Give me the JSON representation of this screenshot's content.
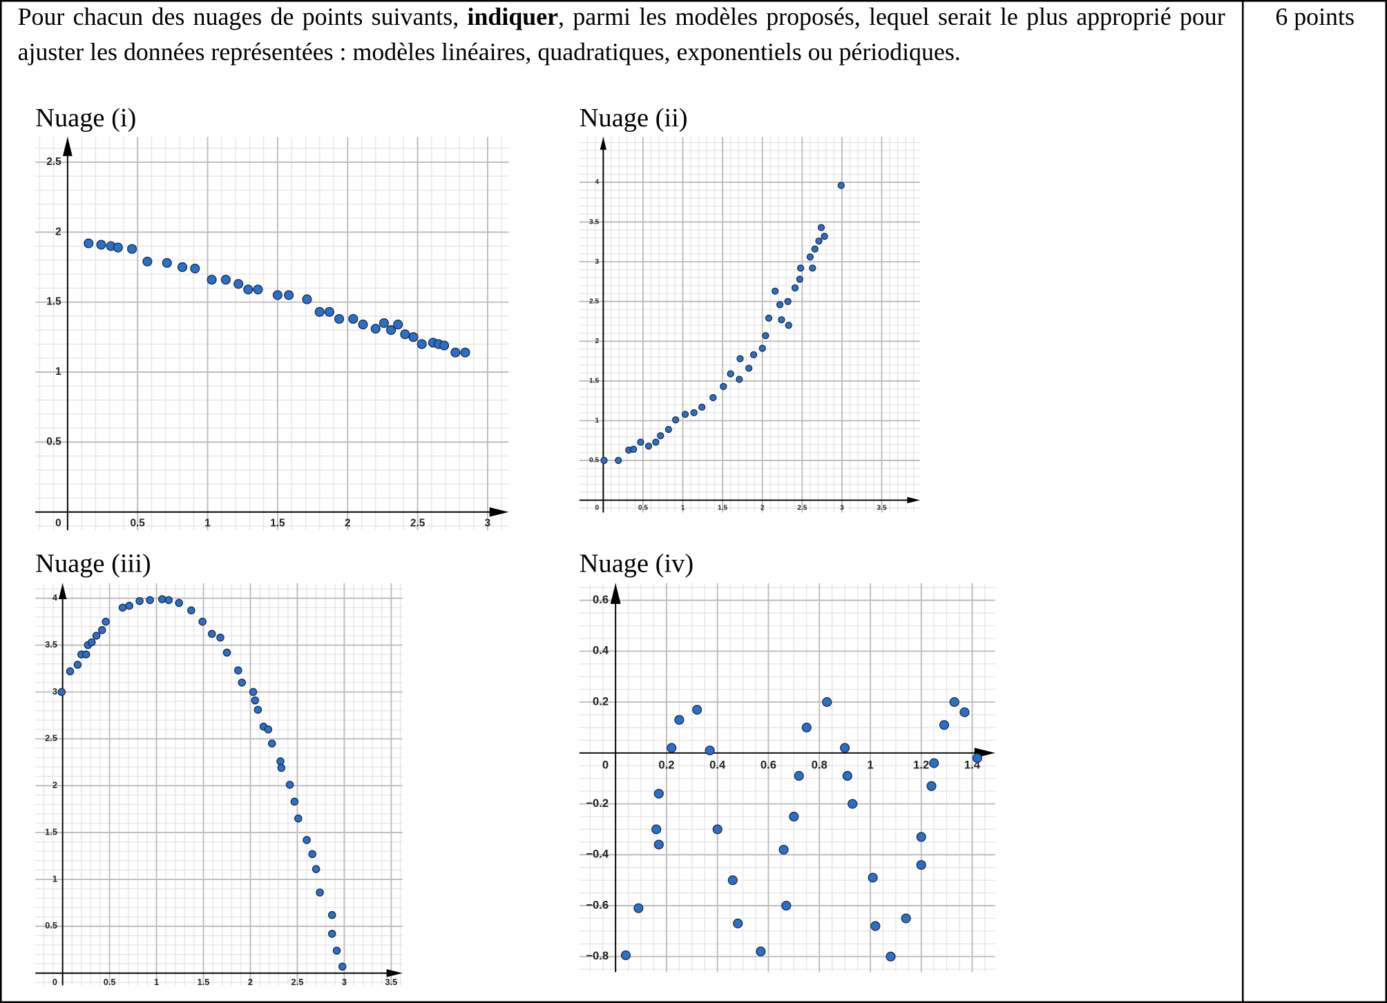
{
  "exercise": {
    "intro": "Pour chacun des nuages de points suivants, ",
    "bold": "indiquer",
    "rest": ", parmi les modèles proposés, lequel serait le plus approprié pour ajuster les données représentées : modèles linéaires, quadratiques, exponentiels ou périodiques.",
    "points": "6 points"
  },
  "chart_data": [
    {
      "type": "scatter",
      "title": "Nuage (i)",
      "color": "#2a6fc9",
      "grid": true,
      "x": [
        0.15,
        0.24,
        0.31,
        0.36,
        0.46,
        0.57,
        0.71,
        0.82,
        0.91,
        1.03,
        1.13,
        1.22,
        1.29,
        1.36,
        1.5,
        1.58,
        1.71,
        1.8,
        1.87,
        1.94,
        2.04,
        2.11,
        2.2,
        2.26,
        2.31,
        2.36,
        2.41,
        2.47,
        2.53,
        2.61,
        2.65,
        2.69,
        2.77,
        2.84
      ],
      "values": [
        1.92,
        1.91,
        1.9,
        1.89,
        1.88,
        1.79,
        1.78,
        1.75,
        1.74,
        1.66,
        1.66,
        1.63,
        1.59,
        1.59,
        1.55,
        1.55,
        1.52,
        1.43,
        1.43,
        1.38,
        1.38,
        1.34,
        1.31,
        1.35,
        1.3,
        1.34,
        1.27,
        1.25,
        1.2,
        1.21,
        1.2,
        1.19,
        1.14,
        1.14
      ],
      "xlim": [
        -0.23,
        3.15
      ],
      "ylim": [
        -0.13,
        2.68
      ],
      "xticks": [
        0,
        0.5,
        1,
        1.5,
        2,
        2.5,
        3
      ],
      "yticks": [
        0.5,
        1,
        1.5,
        2,
        2.5
      ]
    },
    {
      "type": "scatter",
      "title": "Nuage (ii)",
      "color": "#2a6fc9",
      "grid": true,
      "x": [
        0.01,
        0.19,
        0.32,
        0.38,
        0.47,
        0.57,
        0.66,
        0.72,
        0.82,
        0.91,
        1.03,
        1.14,
        1.24,
        1.38,
        1.51,
        1.6,
        1.71,
        1.72,
        1.83,
        1.89,
        2.0,
        2.04,
        2.08,
        2.16,
        2.22,
        2.24,
        2.32,
        2.33,
        2.41,
        2.47,
        2.48,
        2.6,
        2.63,
        2.66,
        2.71,
        2.74,
        2.78,
        2.99
      ],
      "values": [
        0.5,
        0.5,
        0.63,
        0.64,
        0.73,
        0.68,
        0.73,
        0.81,
        0.89,
        1.01,
        1.08,
        1.1,
        1.17,
        1.29,
        1.43,
        1.59,
        1.52,
        1.78,
        1.66,
        1.83,
        1.91,
        2.07,
        2.29,
        2.63,
        2.46,
        2.27,
        2.5,
        2.2,
        2.67,
        2.78,
        2.92,
        3.06,
        2.92,
        3.16,
        3.26,
        3.43,
        3.32,
        3.96
      ],
      "xlim": [
        -0.3,
        3.98
      ],
      "ylim": [
        -0.156,
        4.57
      ],
      "xticks": [
        0,
        0.5,
        1,
        1.5,
        2,
        2.5,
        3,
        3.5
      ],
      "yticks": [
        0.5,
        1,
        1.5,
        2,
        2.5,
        3,
        3.5,
        4
      ]
    },
    {
      "type": "scatter",
      "title": "Nuage (iii)",
      "color": "#2a6fc9",
      "grid": true,
      "x": [
        -0.01,
        0.08,
        0.16,
        0.2,
        0.25,
        0.27,
        0.31,
        0.36,
        0.42,
        0.46,
        0.64,
        0.71,
        0.82,
        0.93,
        1.06,
        1.13,
        1.24,
        1.37,
        1.49,
        1.59,
        1.68,
        1.75,
        1.87,
        1.91,
        2.03,
        2.05,
        2.08,
        2.14,
        2.19,
        2.23,
        2.32,
        2.33,
        2.42,
        2.47,
        2.51,
        2.6,
        2.66,
        2.7,
        2.74,
        2.87,
        2.87,
        2.92,
        2.98
      ],
      "values": [
        3.0,
        3.22,
        3.29,
        3.4,
        3.4,
        3.5,
        3.53,
        3.6,
        3.66,
        3.75,
        3.9,
        3.92,
        3.97,
        3.98,
        3.99,
        3.98,
        3.95,
        3.87,
        3.75,
        3.62,
        3.58,
        3.42,
        3.23,
        3.1,
        3.0,
        2.91,
        2.81,
        2.63,
        2.6,
        2.45,
        2.26,
        2.19,
        2.01,
        1.83,
        1.65,
        1.42,
        1.27,
        1.11,
        0.86,
        0.62,
        0.42,
        0.24,
        0.07
      ],
      "xlim": [
        -0.29,
        3.62
      ],
      "ylim": [
        -0.13,
        4.16
      ],
      "xticks": [
        0,
        0.5,
        1,
        1.5,
        2,
        2.5,
        3,
        3.5
      ],
      "yticks": [
        0.5,
        1,
        1.5,
        2,
        2.5,
        3,
        3.5,
        4
      ]
    },
    {
      "type": "scatter",
      "title": "Nuage (iv)",
      "color": "#2a6fc9",
      "grid": true,
      "x": [
        0.04,
        0.09,
        0.16,
        0.17,
        0.17,
        0.22,
        0.25,
        0.32,
        0.37,
        0.4,
        0.46,
        0.48,
        0.57,
        0.66,
        0.67,
        0.7,
        0.72,
        0.75,
        0.83,
        0.9,
        0.91,
        0.93,
        1.01,
        1.02,
        1.08,
        1.14,
        1.2,
        1.2,
        1.24,
        1.25,
        1.29,
        1.33,
        1.37,
        1.42
      ],
      "values": [
        -0.795,
        -0.61,
        -0.3,
        -0.16,
        -0.36,
        0.02,
        0.13,
        0.17,
        0.01,
        -0.3,
        -0.5,
        -0.67,
        -0.78,
        -0.38,
        -0.6,
        -0.25,
        -0.09,
        0.1,
        0.2,
        0.02,
        -0.09,
        -0.2,
        -0.49,
        -0.68,
        -0.8,
        -0.65,
        -0.44,
        -0.33,
        -0.13,
        -0.04,
        0.11,
        0.2,
        0.16,
        -0.02
      ],
      "xlim": [
        -0.142,
        1.49
      ],
      "ylim": [
        -0.861,
        0.667
      ],
      "xticks": [
        0,
        0.2,
        0.4,
        0.6,
        0.8,
        1,
        1.2,
        1.4
      ],
      "yticks": [
        {
          "value": -0.8,
          "label": "−0.8"
        },
        {
          "value": -0.6,
          "label": "−0.6"
        },
        {
          "value": -0.4,
          "label": "−0.4"
        },
        {
          "value": -0.2,
          "label": "−0.2"
        },
        0.2,
        0.4,
        0.6
      ]
    }
  ]
}
